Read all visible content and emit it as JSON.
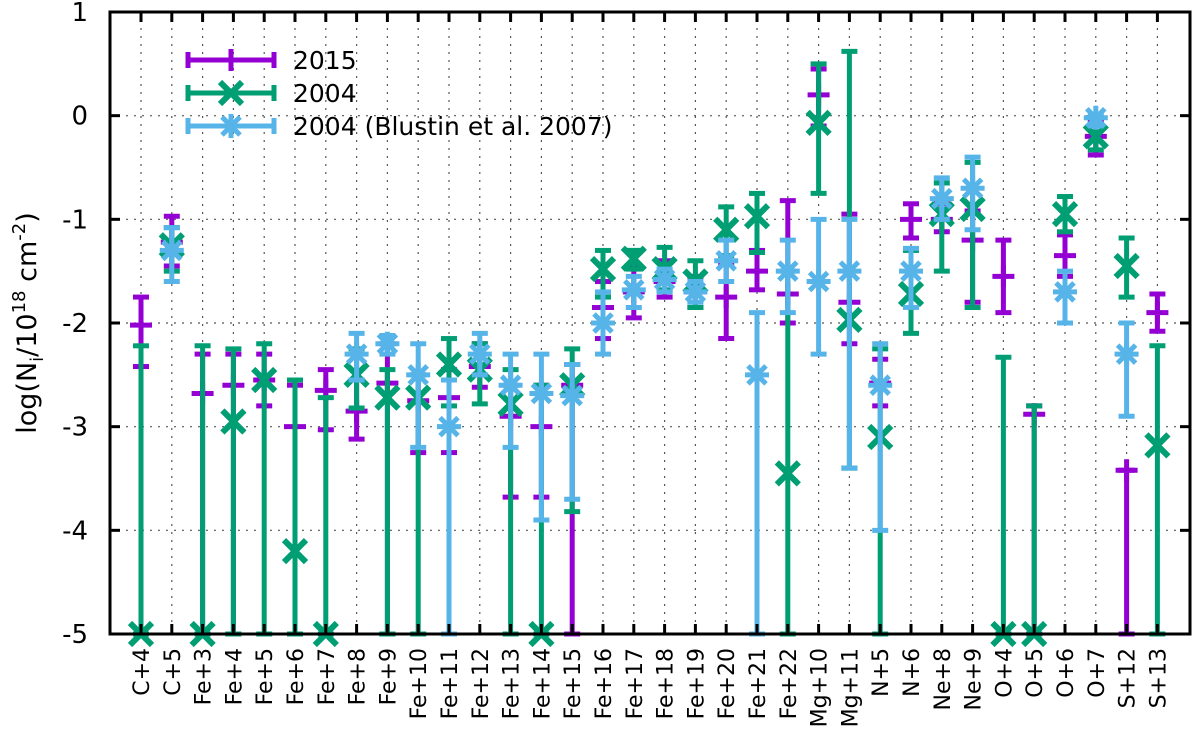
{
  "chart_data": {
    "type": "scatter",
    "ylabel": {
      "main": "log(N",
      "sub": "i",
      "mid": "/10",
      "sup1": "18",
      "unit": " cm",
      "sup2": "-2",
      "end": ")"
    },
    "ylim": [
      -5,
      1
    ],
    "yticks": [
      1,
      0,
      -1,
      -2,
      -3,
      -4,
      -5
    ],
    "ytick_labels": [
      "1",
      "0",
      "-1",
      "-2",
      "-3",
      "-4",
      "-5"
    ],
    "grid": true,
    "legend_position": "top-left",
    "categories": [
      "C+4",
      "C+5",
      "Fe+3",
      "Fe+4",
      "Fe+5",
      "Fe+6",
      "Fe+7",
      "Fe+8",
      "Fe+9",
      "Fe+10",
      "Fe+11",
      "Fe+12",
      "Fe+13",
      "Fe+14",
      "Fe+15",
      "Fe+16",
      "Fe+17",
      "Fe+18",
      "Fe+19",
      "Fe+20",
      "Fe+21",
      "Fe+22",
      "Mg+10",
      "Mg+11",
      "N+5",
      "N+6",
      "Ne+8",
      "Ne+9",
      "O+4",
      "O+5",
      "O+6",
      "O+7",
      "S+12",
      "S+13"
    ],
    "series": [
      {
        "name": "2015",
        "color": "#9400d3",
        "marker": "plus",
        "points": [
          {
            "cat": "C+4",
            "y": -2.02,
            "lo": -2.42,
            "hi": -1.75
          },
          {
            "cat": "C+5",
            "y": -1.22,
            "lo": -1.45,
            "hi": -0.97
          },
          {
            "cat": "Fe+3",
            "y": -2.68,
            "lo": -5.0,
            "hi": -2.3
          },
          {
            "cat": "Fe+4",
            "y": -2.6,
            "lo": -5.0,
            "hi": -2.3
          },
          {
            "cat": "Fe+5",
            "y": -2.55,
            "lo": -2.8,
            "hi": -2.3
          },
          {
            "cat": "Fe+6",
            "y": -3.0,
            "lo": -5.0,
            "hi": -2.6
          },
          {
            "cat": "Fe+7",
            "y": -2.65,
            "lo": -3.03,
            "hi": -2.45
          },
          {
            "cat": "Fe+8",
            "y": -2.85,
            "lo": -3.12,
            "hi": -2.55
          },
          {
            "cat": "Fe+9",
            "y": -2.58,
            "lo": -5.0,
            "hi": -2.2
          },
          {
            "cat": "Fe+10",
            "y": -2.75,
            "lo": -3.25,
            "hi": -2.5
          },
          {
            "cat": "Fe+11",
            "y": -2.72,
            "lo": -3.25,
            "hi": -2.45
          },
          {
            "cat": "Fe+12",
            "y": -2.42,
            "lo": -2.62,
            "hi": -2.2
          },
          {
            "cat": "Fe+13",
            "y": -2.9,
            "lo": -3.68,
            "hi": -2.6
          },
          {
            "cat": "Fe+14",
            "y": -3.0,
            "lo": -3.68,
            "hi": -2.6
          },
          {
            "cat": "Fe+15",
            "y": -2.6,
            "lo": -5.0,
            "hi": -2.4
          },
          {
            "cat": "Fe+16",
            "y": -1.85,
            "lo": -2.15,
            "hi": -1.6
          },
          {
            "cat": "Fe+17",
            "y": -1.7,
            "lo": -1.95,
            "hi": -1.45
          },
          {
            "cat": "Fe+18",
            "y": -1.6,
            "lo": -1.75,
            "hi": -1.4
          },
          {
            "cat": "Fe+19",
            "y": -1.7,
            "lo": -1.85,
            "hi": -1.55
          },
          {
            "cat": "Fe+20",
            "y": -1.75,
            "lo": -2.15,
            "hi": -1.42
          },
          {
            "cat": "Fe+21",
            "y": -1.5,
            "lo": -1.68,
            "hi": -1.3
          },
          {
            "cat": "Fe+22",
            "y": -1.72,
            "lo": -2.0,
            "hi": -0.82
          },
          {
            "cat": "Mg+10",
            "y": 0.2,
            "lo": -0.1,
            "hi": 0.45
          },
          {
            "cat": "Mg+11",
            "y": -1.8,
            "lo": -2.2,
            "hi": -0.95
          },
          {
            "cat": "N+5",
            "y": -2.58,
            "lo": -2.8,
            "hi": -2.35
          },
          {
            "cat": "N+6",
            "y": -1.0,
            "lo": -1.18,
            "hi": -0.85
          },
          {
            "cat": "Ne+8",
            "y": -1.0,
            "lo": -1.12,
            "hi": -0.85
          },
          {
            "cat": "Ne+9",
            "y": -1.2,
            "lo": -1.8,
            "hi": -0.92
          },
          {
            "cat": "O+4",
            "y": -1.55,
            "lo": -1.9,
            "hi": -1.2
          },
          {
            "cat": "O+5",
            "y": -2.88,
            "lo": -5.0,
            "hi": -2.8
          },
          {
            "cat": "O+6",
            "y": -1.35,
            "lo": -1.55,
            "hi": -1.15
          },
          {
            "cat": "O+7",
            "y": -0.2,
            "lo": -0.38,
            "hi": -0.05
          },
          {
            "cat": "S+12",
            "y": -3.42,
            "lo": -5.0,
            "hi": -3.42
          },
          {
            "cat": "S+13",
            "y": -1.9,
            "lo": -2.08,
            "hi": -1.72
          }
        ]
      },
      {
        "name": "2004",
        "color": "#009e73",
        "marker": "cross",
        "points": [
          {
            "cat": "C+4",
            "y": -5.0,
            "lo": -5.0,
            "hi": -2.22
          },
          {
            "cat": "C+5",
            "y": -1.25,
            "lo": -1.5,
            "hi": -1.08
          },
          {
            "cat": "Fe+3",
            "y": -5.0,
            "lo": -5.0,
            "hi": -2.22
          },
          {
            "cat": "Fe+4",
            "y": -2.95,
            "lo": -5.0,
            "hi": -2.25
          },
          {
            "cat": "Fe+5",
            "y": -2.55,
            "lo": -5.0,
            "hi": -2.2
          },
          {
            "cat": "Fe+6",
            "y": -4.2,
            "lo": -5.0,
            "hi": -2.55
          },
          {
            "cat": "Fe+7",
            "y": -5.0,
            "lo": -5.0,
            "hi": -2.72
          },
          {
            "cat": "Fe+8",
            "y": -2.5,
            "lo": -2.82,
            "hi": -2.25
          },
          {
            "cat": "Fe+9",
            "y": -2.72,
            "lo": -5.0,
            "hi": -2.45
          },
          {
            "cat": "Fe+10",
            "y": -2.72,
            "lo": -5.0,
            "hi": -2.5
          },
          {
            "cat": "Fe+11",
            "y": -2.4,
            "lo": -2.8,
            "hi": -2.15
          },
          {
            "cat": "Fe+12",
            "y": -2.45,
            "lo": -2.78,
            "hi": -2.2
          },
          {
            "cat": "Fe+13",
            "y": -2.78,
            "lo": -5.0,
            "hi": -2.45
          },
          {
            "cat": "Fe+14",
            "y": -5.0,
            "lo": -5.0,
            "hi": -2.6
          },
          {
            "cat": "Fe+15",
            "y": -2.6,
            "lo": -3.82,
            "hi": -2.25
          },
          {
            "cat": "Fe+16",
            "y": -1.48,
            "lo": -1.75,
            "hi": -1.3
          },
          {
            "cat": "Fe+17",
            "y": -1.38,
            "lo": -1.48,
            "hi": -1.3
          },
          {
            "cat": "Fe+18",
            "y": -1.48,
            "lo": -1.68,
            "hi": -1.27
          },
          {
            "cat": "Fe+19",
            "y": -1.6,
            "lo": -1.85,
            "hi": -1.4
          },
          {
            "cat": "Fe+20",
            "y": -1.1,
            "lo": -1.35,
            "hi": -0.88
          },
          {
            "cat": "Fe+21",
            "y": -0.97,
            "lo": -1.32,
            "hi": -0.75
          },
          {
            "cat": "Fe+22",
            "y": -3.45,
            "lo": -5.0,
            "hi": -1.5
          },
          {
            "cat": "Mg+10",
            "y": -0.07,
            "lo": -0.75,
            "hi": 0.5
          },
          {
            "cat": "Mg+11",
            "y": -1.97,
            "lo": -3.4,
            "hi": 0.62
          },
          {
            "cat": "N+5",
            "y": -3.1,
            "lo": -5.0,
            "hi": -2.25
          },
          {
            "cat": "N+6",
            "y": -1.72,
            "lo": -2.1,
            "hi": -1.3
          },
          {
            "cat": "Ne+8",
            "y": -0.95,
            "lo": -1.5,
            "hi": -0.65
          },
          {
            "cat": "Ne+9",
            "y": -0.9,
            "lo": -1.85,
            "hi": -0.45
          },
          {
            "cat": "O+4",
            "y": -5.0,
            "lo": -5.0,
            "hi": -2.33
          },
          {
            "cat": "O+5",
            "y": -5.0,
            "lo": -5.0,
            "hi": -2.8
          },
          {
            "cat": "O+6",
            "y": -0.95,
            "lo": -1.12,
            "hi": -0.78
          },
          {
            "cat": "O+7",
            "y": -0.2,
            "lo": -0.33,
            "hi": -0.08
          },
          {
            "cat": "S+12",
            "y": -1.45,
            "lo": -1.75,
            "hi": -1.18
          },
          {
            "cat": "S+13",
            "y": -3.18,
            "lo": -5.0,
            "hi": -2.22
          }
        ]
      },
      {
        "name": "2004 (Blustin et al. 2007)",
        "color": "#56b4e9",
        "marker": "star",
        "points": [
          {
            "cat": "C+5",
            "y": -1.3,
            "lo": -1.6,
            "hi": -1.08
          },
          {
            "cat": "Fe+8",
            "y": -2.3,
            "lo": -2.55,
            "hi": -2.1
          },
          {
            "cat": "Fe+9",
            "y": -2.2,
            "lo": -2.3,
            "hi": -2.12
          },
          {
            "cat": "Fe+10",
            "y": -2.5,
            "lo": -3.2,
            "hi": -2.2
          },
          {
            "cat": "Fe+11",
            "y": -3.0,
            "lo": -5.0,
            "hi": -2.55
          },
          {
            "cat": "Fe+12",
            "y": -2.3,
            "lo": -2.5,
            "hi": -2.1
          },
          {
            "cat": "Fe+13",
            "y": -2.6,
            "lo": -3.2,
            "hi": -2.3
          },
          {
            "cat": "Fe+14",
            "y": -2.68,
            "lo": -3.9,
            "hi": -2.3
          },
          {
            "cat": "Fe+15",
            "y": -2.7,
            "lo": -3.7,
            "hi": -2.4
          },
          {
            "cat": "Fe+16",
            "y": -2.0,
            "lo": -2.3,
            "hi": -1.7
          },
          {
            "cat": "Fe+17",
            "y": -1.68,
            "lo": -1.85,
            "hi": -1.55
          },
          {
            "cat": "Fe+18",
            "y": -1.58,
            "lo": -1.7,
            "hi": -1.48
          },
          {
            "cat": "Fe+19",
            "y": -1.7,
            "lo": -1.8,
            "hi": -1.6
          },
          {
            "cat": "Fe+20",
            "y": -1.4,
            "lo": -1.6,
            "hi": -1.2
          },
          {
            "cat": "Fe+21",
            "y": -2.5,
            "lo": -5.0,
            "hi": -1.9
          },
          {
            "cat": "Fe+22",
            "y": -1.5,
            "lo": -1.9,
            "hi": -1.2
          },
          {
            "cat": "Mg+10",
            "y": -1.6,
            "lo": -2.3,
            "hi": -1.0
          },
          {
            "cat": "Mg+11",
            "y": -1.5,
            "lo": -3.4,
            "hi": -1.0
          },
          {
            "cat": "N+5",
            "y": -2.6,
            "lo": -4.0,
            "hi": -2.2
          },
          {
            "cat": "N+6",
            "y": -1.5,
            "lo": -1.85,
            "hi": -1.28
          },
          {
            "cat": "Ne+8",
            "y": -0.8,
            "lo": -1.0,
            "hi": -0.6
          },
          {
            "cat": "Ne+9",
            "y": -0.7,
            "lo": -1.1,
            "hi": -0.4
          },
          {
            "cat": "O+6",
            "y": -1.7,
            "lo": -2.0,
            "hi": -1.5
          },
          {
            "cat": "O+7",
            "y": -0.02,
            "lo": -0.1,
            "hi": 0.0
          },
          {
            "cat": "S+12",
            "y": -2.3,
            "lo": -2.9,
            "hi": -2.0
          }
        ]
      }
    ]
  }
}
